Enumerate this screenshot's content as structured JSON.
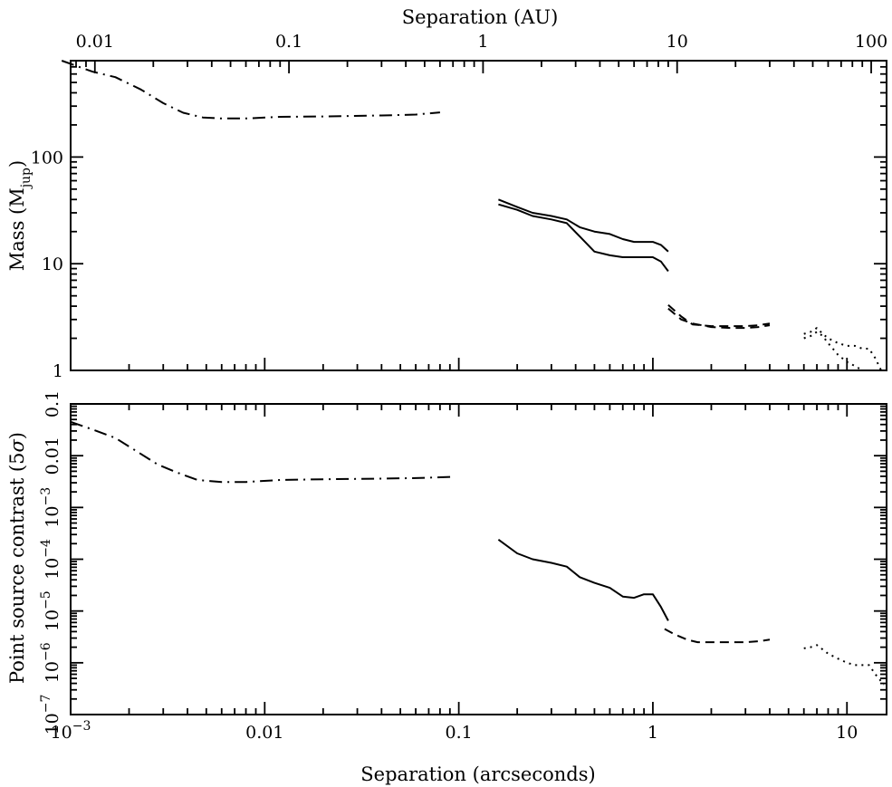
{
  "chart_data": [
    {
      "type": "line",
      "panel": "top",
      "top_axis_label": "Separation (AU)",
      "top_tick_labels": [
        "0.01",
        "0.1",
        "1",
        "10",
        "100"
      ],
      "top_xlim_au": [
        0.0075,
        120
      ],
      "top_xscale": "log",
      "ylabel_main": "Mass (M",
      "ylabel_sub": "jup",
      "ylabel_close": ")",
      "yscale": "log",
      "ylim": [
        1,
        800
      ],
      "y_tick_labels": [
        "1",
        "10",
        "100"
      ],
      "grid": false,
      "series": [
        {
          "style": "dash-dot",
          "x": [
            0.0009,
            0.0013,
            0.0017,
            0.0023,
            0.003,
            0.0038,
            0.0048,
            0.006,
            0.008,
            0.012,
            0.02,
            0.04,
            0.06,
            0.08
          ],
          "y": [
            800,
            630,
            560,
            430,
            320,
            260,
            235,
            230,
            230,
            238,
            240,
            245,
            250,
            262
          ]
        },
        {
          "style": "solid",
          "x": [
            0.16,
            0.2,
            0.24,
            0.3,
            0.36,
            0.42,
            0.5,
            0.6,
            0.7,
            0.8,
            0.9,
            1.0,
            1.1,
            1.2
          ],
          "y": [
            40,
            34,
            30,
            28,
            26,
            22,
            20,
            19,
            17,
            16,
            16,
            16,
            15,
            13
          ]
        },
        {
          "style": "solid",
          "x": [
            0.16,
            0.2,
            0.24,
            0.3,
            0.36,
            0.42,
            0.5,
            0.6,
            0.7,
            0.8,
            0.9,
            1.0,
            1.1,
            1.2
          ],
          "y": [
            36,
            32,
            28,
            26,
            24,
            18,
            13,
            12,
            11.5,
            11.5,
            11.5,
            11.5,
            10.5,
            8.5
          ]
        },
        {
          "style": "dashed",
          "x": [
            1.2,
            1.4,
            1.6,
            2.0,
            2.5,
            3.0,
            3.5,
            4.0
          ],
          "y": [
            4.1,
            3.2,
            2.7,
            2.6,
            2.6,
            2.6,
            2.65,
            2.75
          ]
        },
        {
          "style": "dashed",
          "x": [
            1.2,
            1.4,
            1.6,
            2.0,
            2.5,
            3.0,
            3.5,
            4.0
          ],
          "y": [
            3.8,
            3.0,
            2.75,
            2.55,
            2.5,
            2.5,
            2.55,
            2.65
          ]
        },
        {
          "style": "dotted",
          "x": [
            6,
            6.5,
            7,
            7.5,
            8,
            9,
            10,
            11,
            12,
            13,
            14,
            15
          ],
          "y": [
            2.2,
            2.3,
            2.5,
            2.2,
            2.0,
            1.8,
            1.7,
            1.7,
            1.6,
            1.6,
            1.3,
            1.0
          ]
        },
        {
          "style": "dotted",
          "x": [
            6,
            6.5,
            7,
            7.5,
            8,
            9,
            10,
            11,
            12,
            13,
            14,
            15
          ],
          "y": [
            2.0,
            2.1,
            2.3,
            2.1,
            1.8,
            1.4,
            1.2,
            1.1,
            1.0,
            1.0,
            1.0,
            1.0
          ]
        }
      ]
    },
    {
      "type": "line",
      "panel": "bottom",
      "xlabel": "Separation (arcseconds)",
      "xscale": "log",
      "xlim": [
        0.001,
        16
      ],
      "x_tick_labels": [
        {
          "base": "10",
          "exp": "−3"
        },
        {
          "base": "0.01",
          "exp": ""
        },
        {
          "base": "0.1",
          "exp": ""
        },
        {
          "base": "1",
          "exp": ""
        },
        {
          "base": "10",
          "exp": ""
        }
      ],
      "ylabel_main": "Point source contrast (5",
      "ylabel_greek": "σ",
      "ylabel_close": ")",
      "yscale": "log",
      "ylim": [
        1e-07,
        0.1
      ],
      "y_tick_labels": [
        {
          "base": "10",
          "exp": "−7"
        },
        {
          "base": "10",
          "exp": "−6"
        },
        {
          "base": "10",
          "exp": "−5"
        },
        {
          "base": "10",
          "exp": "−4"
        },
        {
          "base": "10",
          "exp": "−3"
        },
        {
          "base": "0.01",
          "exp": ""
        },
        {
          "base": "0.1",
          "exp": ""
        }
      ],
      "grid": false,
      "series": [
        {
          "style": "dash-dot",
          "x": [
            0.001,
            0.0013,
            0.0017,
            0.0022,
            0.0028,
            0.0035,
            0.0045,
            0.006,
            0.008,
            0.012,
            0.02,
            0.04,
            0.06,
            0.095
          ],
          "y": [
            0.045,
            0.032,
            0.022,
            0.012,
            0.0068,
            0.0048,
            0.0034,
            0.0031,
            0.0031,
            0.0034,
            0.0035,
            0.0036,
            0.0037,
            0.0039
          ]
        },
        {
          "style": "solid",
          "x": [
            0.16,
            0.2,
            0.24,
            0.3,
            0.36,
            0.42,
            0.5,
            0.6,
            0.7,
            0.8,
            0.9,
            1.0,
            1.1,
            1.2
          ],
          "y": [
            0.00024,
            0.00013,
            0.0001,
            8.5e-05,
            7.2e-05,
            4.5e-05,
            3.5e-05,
            2.8e-05,
            1.9e-05,
            1.8e-05,
            2.1e-05,
            2.1e-05,
            1.2e-05,
            6.5e-06
          ]
        },
        {
          "style": "dashed",
          "x": [
            1.15,
            1.3,
            1.5,
            1.7,
            2.0,
            2.5,
            3.0,
            3.5,
            4.0
          ],
          "y": [
            4.5e-06,
            3.5e-06,
            2.8e-06,
            2.5e-06,
            2.5e-06,
            2.5e-06,
            2.5e-06,
            2.6e-06,
            2.8e-06
          ]
        },
        {
          "style": "dotted",
          "x": [
            6,
            6.5,
            7,
            7.5,
            8,
            9,
            10,
            11,
            12,
            13,
            14,
            15.5
          ],
          "y": [
            1.9e-06,
            2e-06,
            2.2e-06,
            1.8e-06,
            1.5e-06,
            1.2e-06,
            1e-06,
            9e-07,
            9e-07,
            9e-07,
            6e-07,
            3.8e-07
          ]
        }
      ]
    }
  ]
}
